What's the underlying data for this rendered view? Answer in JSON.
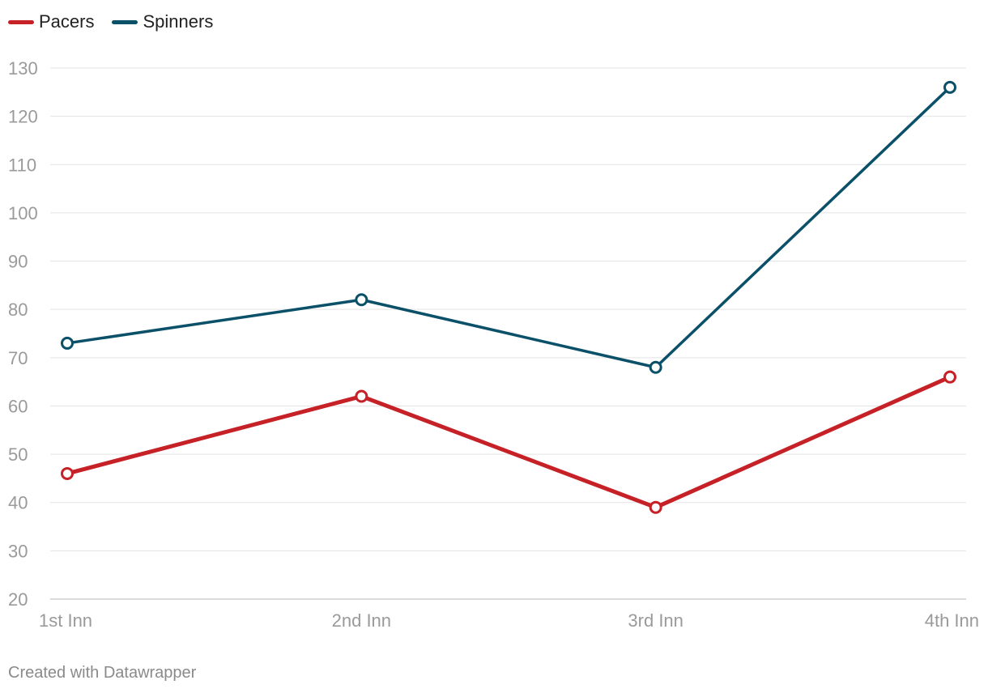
{
  "legend": {
    "items": [
      {
        "label": "Pacers",
        "color": "#c62127"
      },
      {
        "label": "Spinners",
        "color": "#0b5069"
      }
    ]
  },
  "footer": {
    "credit": "Created with Datawrapper"
  },
  "chart_data": {
    "type": "line",
    "title": "",
    "xlabel": "",
    "ylabel": "",
    "categories": [
      "1st Inn",
      "2nd Inn",
      "3rd Inn",
      "4th Inn"
    ],
    "ylim": [
      20,
      130
    ],
    "yticks": [
      20,
      30,
      40,
      50,
      60,
      70,
      80,
      90,
      100,
      110,
      120,
      130
    ],
    "grid": true,
    "legend_position": "top-left",
    "series": [
      {
        "name": "Pacers",
        "color": "#c62127",
        "values": [
          46,
          62,
          39,
          66
        ]
      },
      {
        "name": "Spinners",
        "color": "#0b5069",
        "values": [
          73,
          82,
          68,
          126
        ]
      }
    ]
  }
}
